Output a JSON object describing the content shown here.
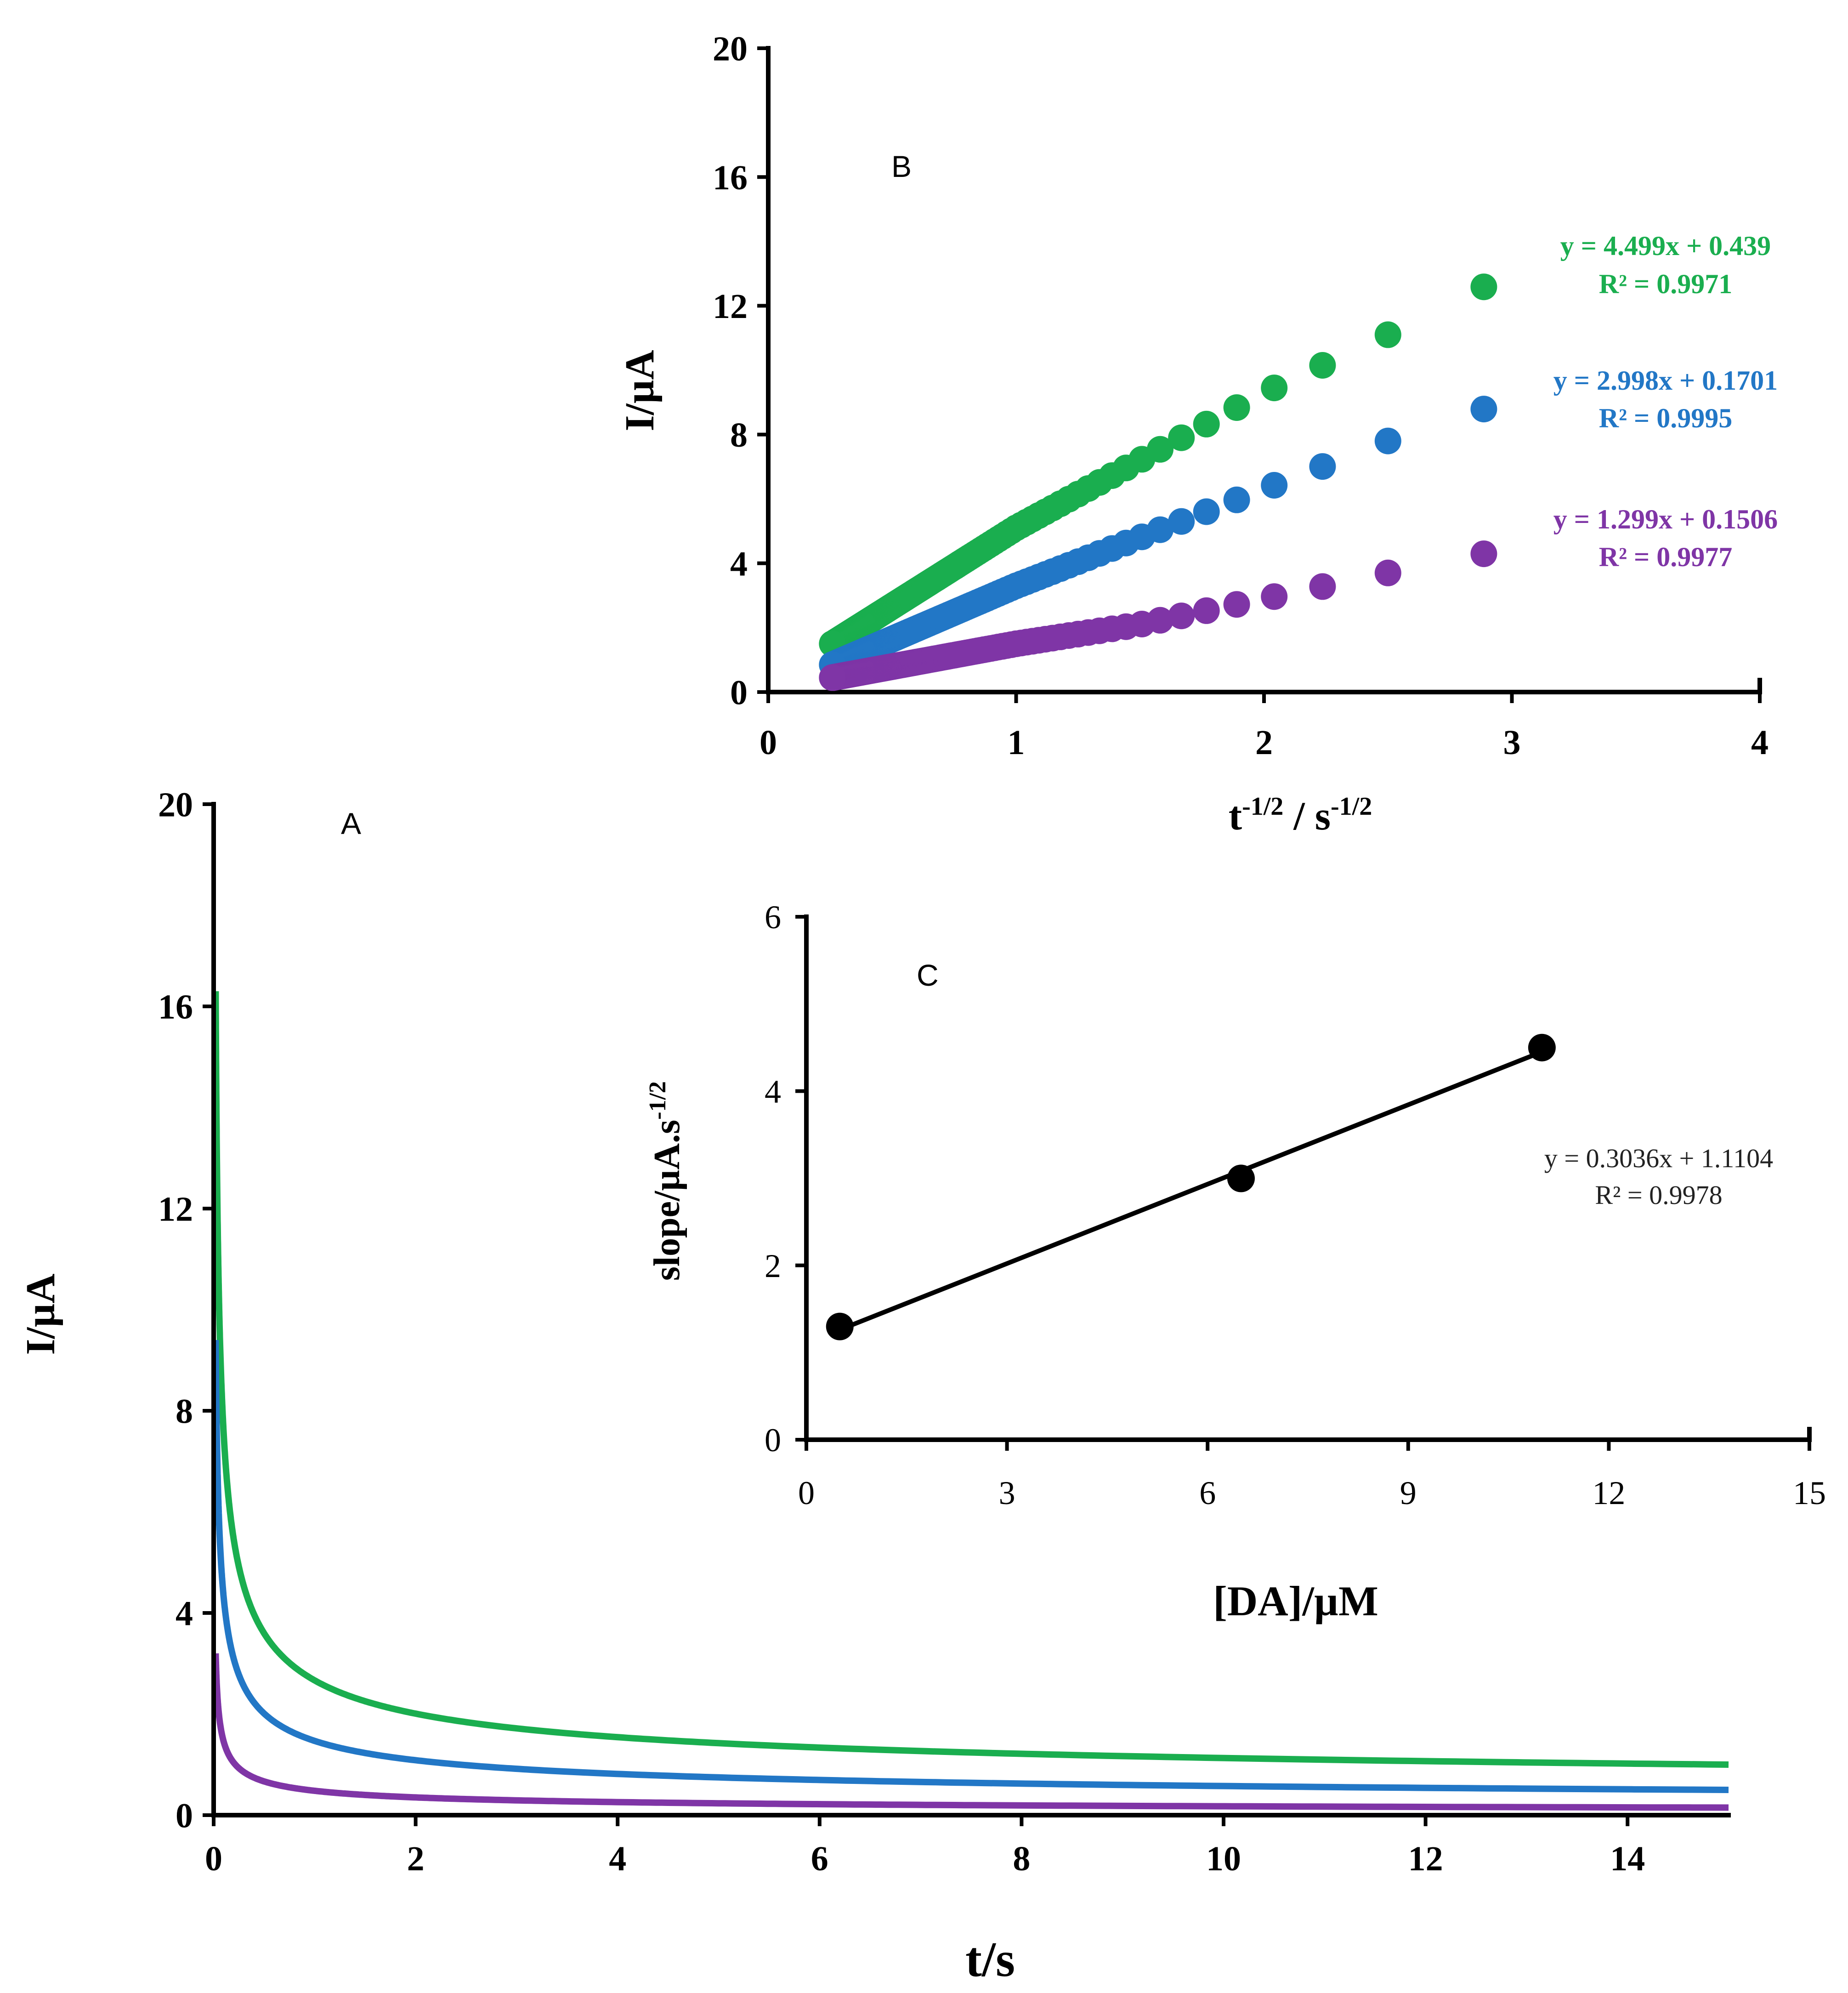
{
  "chart_data": [
    {
      "id": "A",
      "panel_label": "A",
      "type": "line",
      "xlabel": "t/s",
      "ylabel": "I/µA",
      "xlim": [
        0,
        15
      ],
      "ylim": [
        0,
        20
      ],
      "xticks": [
        "0",
        "2",
        "4",
        "6",
        "8",
        "10",
        "12",
        "14"
      ],
      "yticks": [
        "0",
        "4",
        "8",
        "12",
        "16",
        "20"
      ],
      "series": [
        {
          "name": "green",
          "color": "#1aae4f",
          "t0": 0.02,
          "i_t0": 16.3,
          "i_end": 1.0,
          "form": "cottrell"
        },
        {
          "name": "blue",
          "color": "#2277c6",
          "t0": 0.02,
          "i_t0": 9.4,
          "i_end": 0.5,
          "form": "cottrell"
        },
        {
          "name": "purple",
          "color": "#7f35a6",
          "t0": 0.02,
          "i_t0": 3.2,
          "i_end": 0.15,
          "form": "cottrell"
        }
      ]
    },
    {
      "id": "B",
      "panel_label": "B",
      "type": "scatter",
      "xlabel_base": "t",
      "xlabel_exp1": "-1/2",
      "xlabel_mid": " / s",
      "xlabel_exp2": "-1/2",
      "ylabel": "I/µA",
      "xlim": [
        0,
        4
      ],
      "ylim": [
        0,
        20
      ],
      "xticks": [
        "0",
        "1",
        "2",
        "3",
        "4"
      ],
      "yticks": [
        "0",
        "4",
        "8",
        "12",
        "16",
        "20"
      ],
      "x_range": [
        0.26,
        2.89
      ],
      "series": [
        {
          "name": "green",
          "color": "#1aae4f",
          "values_at": [
            [
              0.26,
              1.5
            ],
            [
              1.0,
              5.1
            ],
            [
              1.5,
              7.2
            ],
            [
              2.0,
              9.3
            ],
            [
              2.5,
              11.1
            ],
            [
              2.89,
              12.6
            ]
          ],
          "equation": "y = 4.499x + 0.439",
          "r2": "R² = 0.9971"
        },
        {
          "name": "blue",
          "color": "#2277c6",
          "values_at": [
            [
              0.26,
              0.85
            ],
            [
              1.0,
              3.3
            ],
            [
              1.5,
              4.8
            ],
            [
              2.0,
              6.3
            ],
            [
              2.5,
              7.8
            ],
            [
              2.89,
              8.8
            ]
          ],
          "equation": "y = 2.998x + 0.1701",
          "r2": "R² = 0.9995"
        },
        {
          "name": "purple",
          "color": "#7f35a6",
          "values_at": [
            [
              0.26,
              0.45
            ],
            [
              1.0,
              1.5
            ],
            [
              1.5,
              2.1
            ],
            [
              2.0,
              2.9
            ],
            [
              2.5,
              3.7
            ],
            [
              2.89,
              4.3
            ]
          ],
          "equation": "y = 1.299x + 0.1506",
          "r2": "R² = 0.9977"
        }
      ]
    },
    {
      "id": "C",
      "panel_label": "C",
      "type": "scatter",
      "xlabel": "[DA]/µM",
      "ylabel_base": "slope/µA.s",
      "ylabel_exp": "-1/2",
      "xlim": [
        0,
        15
      ],
      "ylim": [
        0,
        6
      ],
      "xticks": [
        "0",
        "3",
        "6",
        "9",
        "12",
        "15"
      ],
      "yticks": [
        "0",
        "2",
        "4",
        "6"
      ],
      "points": [
        [
          0.5,
          1.299
        ],
        [
          6.5,
          2.998
        ],
        [
          11.0,
          4.499
        ]
      ],
      "fit_x": [
        0.5,
        11.0
      ],
      "equation": "y = 0.3036x + 1.1104",
      "r2": "R² = 0.9978"
    }
  ]
}
